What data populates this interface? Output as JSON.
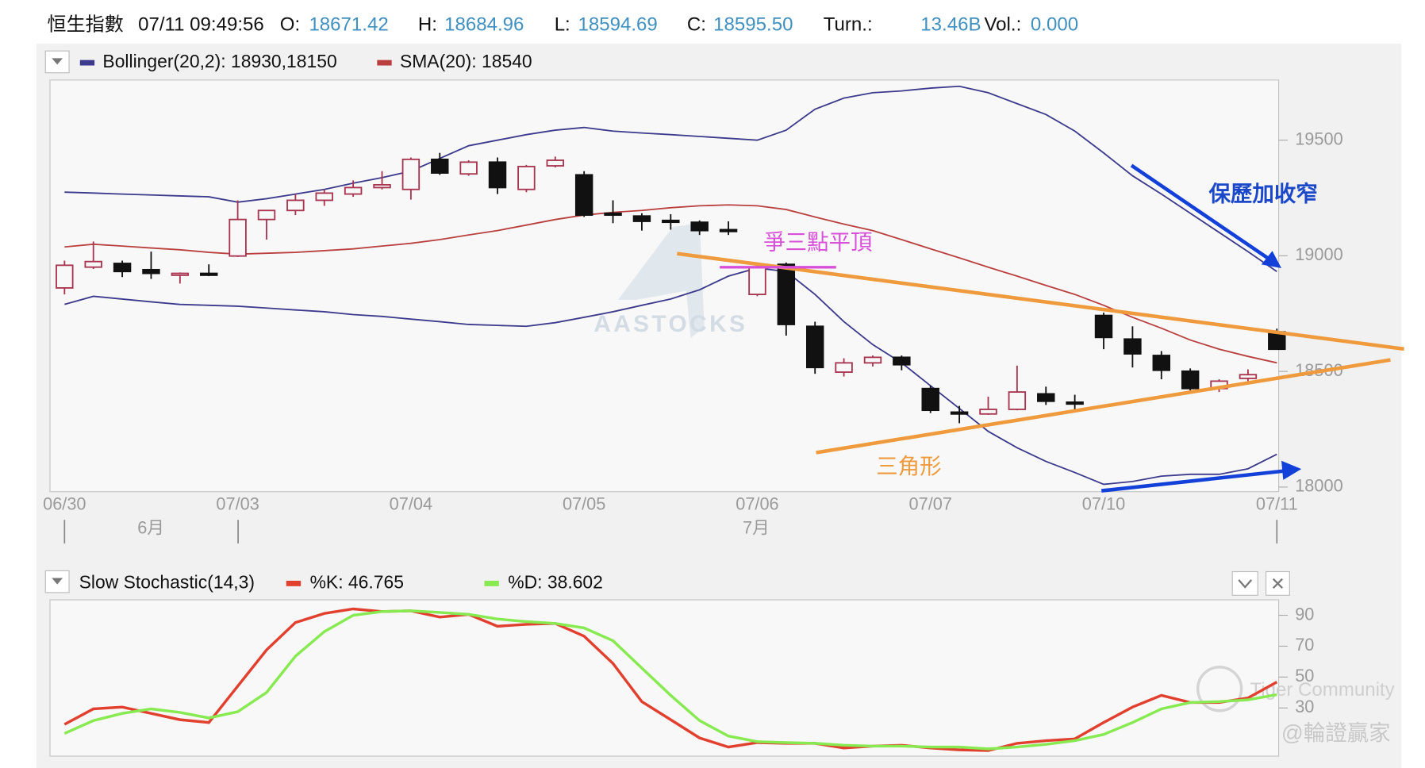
{
  "header": {
    "index_name": "恒生指數",
    "time": "07/11 09:49:56",
    "fields": [
      {
        "label": "O:",
        "value": "18671.42"
      },
      {
        "label": "H:",
        "value": "18684.96"
      },
      {
        "label": "L:",
        "value": "18594.69"
      },
      {
        "label": "C:",
        "value": "18595.50"
      },
      {
        "label": "Turn.:",
        "value": "13.46B"
      },
      {
        "label": "Vol.:",
        "value": "0.000"
      }
    ]
  },
  "chart_data": [
    {
      "type": "candlestick",
      "categories": [
        "06/30",
        null,
        null,
        null,
        null,
        null,
        "07/03",
        null,
        null,
        null,
        null,
        null,
        "07/04",
        null,
        null,
        null,
        null,
        null,
        "07/05",
        null,
        null,
        null,
        null,
        null,
        "07/06",
        null,
        null,
        null,
        null,
        null,
        "07/07",
        null,
        null,
        null,
        null,
        null,
        "07/10",
        null,
        null,
        null,
        null,
        null,
        "07/11"
      ],
      "months": [
        "6月",
        "7月"
      ],
      "open": [
        18861,
        18951,
        18967,
        18940,
        18916,
        18924,
        18999,
        19157,
        19196,
        19240,
        19267,
        19295,
        19287,
        19417,
        19354,
        19405,
        19287,
        19389,
        19350,
        19184,
        19172,
        19153,
        19145,
        19113,
        18833,
        18963,
        18695,
        18497,
        18537,
        18561,
        18426,
        18324,
        18316,
        18336,
        18403,
        18367,
        18742,
        18640,
        18569,
        18501,
        18426,
        18470,
        18671
      ],
      "high": [
        18979,
        19062,
        18979,
        19018,
        18928,
        18963,
        19240,
        19196,
        19267,
        19287,
        19326,
        19366,
        19425,
        19445,
        19413,
        19425,
        19393,
        19429,
        19366,
        19240,
        19184,
        19180,
        19153,
        19149,
        18971,
        18971,
        18715,
        18557,
        18569,
        18569,
        18438,
        18351,
        18391,
        18525,
        18434,
        18399,
        18754,
        18695,
        18588,
        18513,
        18466,
        18509,
        18685
      ],
      "low": [
        18833,
        18943,
        18908,
        18900,
        18880,
        18912,
        18995,
        19070,
        19176,
        19216,
        19255,
        19287,
        19243,
        19350,
        19346,
        19267,
        19275,
        19382,
        19168,
        19141,
        19109,
        19113,
        19090,
        19090,
        18825,
        18655,
        18490,
        18478,
        18521,
        18505,
        18320,
        18276,
        18312,
        18332,
        18355,
        18332,
        18596,
        18517,
        18466,
        18418,
        18411,
        18458,
        18595
      ],
      "close": [
        18959,
        18975,
        18932,
        18924,
        18924,
        18916,
        19157,
        19196,
        19240,
        19271,
        19295,
        19307,
        19417,
        19358,
        19405,
        19295,
        19386,
        19413,
        19176,
        19176,
        19149,
        19145,
        19109,
        19105,
        18951,
        18703,
        18517,
        18537,
        18561,
        18529,
        18332,
        18316,
        18336,
        18411,
        18371,
        18359,
        18647,
        18576,
        18505,
        18426,
        18458,
        18486,
        18596
      ],
      "up_color": "#a8344f",
      "down_color": "#111111",
      "overlays": [
        {
          "name": "Bollinger(20,2): 18930,18150",
          "color": "#3c3a8c",
          "upper": [
            19275,
            19271,
            19267,
            19263,
            19259,
            19255,
            19232,
            19247,
            19267,
            19287,
            19314,
            19338,
            19366,
            19421,
            19476,
            19500,
            19524,
            19543,
            19555,
            19539,
            19531,
            19524,
            19516,
            19508,
            19500,
            19543,
            19634,
            19682,
            19705,
            19713,
            19725,
            19733,
            19705,
            19658,
            19611,
            19539,
            19445,
            19346,
            19267,
            19184,
            19101,
            19018,
            18932
          ],
          "lower": [
            18790,
            18825,
            18813,
            18801,
            18790,
            18786,
            18782,
            18774,
            18766,
            18758,
            18746,
            18738,
            18726,
            18715,
            18703,
            18699,
            18695,
            18711,
            18734,
            18758,
            18786,
            18813,
            18853,
            18912,
            18947,
            18932,
            18833,
            18715,
            18616,
            18537,
            18438,
            18340,
            18241,
            18170,
            18111,
            18063,
            18012,
            18024,
            18047,
            18055,
            18055,
            18079,
            18142
          ]
        },
        {
          "name": "SMA(20): 18540",
          "color": "#b9403f",
          "values": [
            19038,
            19050,
            19042,
            19034,
            19026,
            19015,
            19007,
            19011,
            19015,
            19022,
            19030,
            19042,
            19054,
            19070,
            19090,
            19109,
            19133,
            19157,
            19176,
            19188,
            19196,
            19208,
            19216,
            19220,
            19216,
            19200,
            19168,
            19137,
            19109,
            19070,
            19030,
            18991,
            18951,
            18912,
            18872,
            18833,
            18786,
            18734,
            18687,
            18636,
            18596,
            18565,
            18537
          ]
        }
      ],
      "ylim": [
        17980,
        19760
      ],
      "yticks": [
        18000,
        18500,
        19000,
        19500
      ],
      "annotations": [
        "保歷加收窄",
        "爭三點平頂",
        "三角形"
      ]
    },
    {
      "type": "line",
      "title": "Slow Stochastic(14,3)",
      "series": [
        {
          "name": "%K: 46.765",
          "color": "#e2402f",
          "values": [
            19.4,
            29.4,
            30.6,
            26.5,
            22.4,
            20.6,
            44.1,
            67.6,
            85.3,
            91.2,
            94.1,
            92.4,
            92.9,
            88.8,
            90.6,
            82.9,
            84.1,
            84.7,
            76.5,
            58.8,
            34.1,
            22.4,
            10.6,
            4.7,
            7.6,
            7.1,
            7.1,
            4.1,
            5.3,
            5.9,
            4.1,
            2.9,
            2.4,
            7.1,
            8.8,
            10.0,
            20.6,
            30.6,
            38.2,
            33.5,
            33.5,
            36.5,
            46.8
          ]
        },
        {
          "name": "%D: 38.602",
          "color": "#86ea50",
          "values": [
            13.5,
            21.8,
            26.5,
            29.4,
            27.1,
            23.5,
            27.6,
            40.0,
            63.5,
            79.4,
            90.0,
            92.4,
            92.9,
            91.8,
            90.6,
            87.6,
            85.9,
            84.7,
            81.8,
            73.5,
            55.9,
            38.2,
            21.8,
            11.8,
            8.2,
            7.6,
            7.1,
            5.9,
            5.3,
            5.3,
            4.7,
            4.7,
            3.5,
            4.7,
            6.5,
            8.8,
            12.9,
            20.6,
            29.4,
            33.5,
            34.1,
            35.3,
            38.6
          ]
        }
      ],
      "ylim": [
        0,
        100
      ],
      "yticks": [
        30,
        50,
        70,
        90
      ]
    }
  ],
  "watermarks": [
    "AASTOCKS",
    "Tiger Community",
    "@輪證贏家"
  ]
}
